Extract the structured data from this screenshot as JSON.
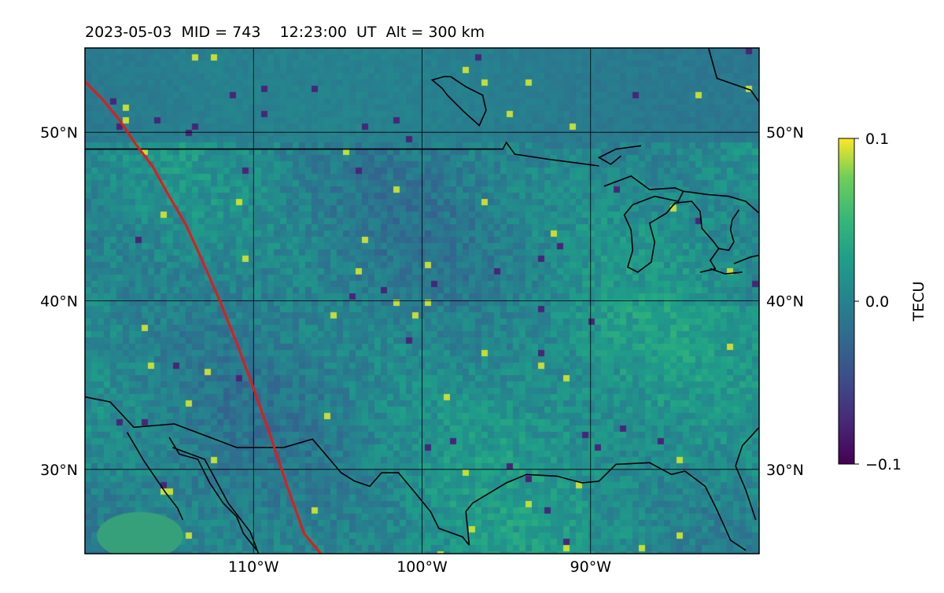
{
  "chart_data": {
    "type": "heatmap",
    "title": {
      "date": "2023-05-03",
      "mid": "MID = 743",
      "time": "12:23:00  UT",
      "alt": "Alt = 300 km"
    },
    "x_axis": {
      "ticks": [
        -110,
        -100,
        -90
      ],
      "tick_labels": [
        "110°W",
        "100°W",
        "90°W"
      ],
      "range_deg": [
        -120,
        -80
      ]
    },
    "y_axis": {
      "ticks": [
        30,
        40,
        50
      ],
      "tick_labels": [
        "30°N",
        "40°N",
        "50°N"
      ],
      "range_deg": [
        25,
        55
      ]
    },
    "grid": true,
    "colorbar": {
      "label": "TECU",
      "colormap": "viridis",
      "range": [
        -0.1,
        0.1
      ],
      "tick_labels": [
        "0.1",
        "0.0",
        "−0.1"
      ],
      "ticks": [
        0.1,
        0.0,
        -0.1
      ]
    },
    "terminator_line": {
      "color": "#e31a1c",
      "points_lon_lat": [
        [
          -120,
          53
        ],
        [
          -119,
          52
        ],
        [
          -118,
          50.8
        ],
        [
          -117,
          49.3
        ],
        [
          -116,
          48
        ],
        [
          -115,
          46.2
        ],
        [
          -114,
          44.5
        ],
        [
          -113,
          42.3
        ],
        [
          -112,
          40
        ],
        [
          -111,
          37.5
        ],
        [
          -110,
          34.8
        ],
        [
          -109,
          32
        ],
        [
          -108,
          29
        ],
        [
          -107,
          26.2
        ],
        [
          -106,
          25
        ]
      ]
    },
    "coast_color": "#000000",
    "coastlines_lon_lat": [
      [
        [
          -120,
          49
        ],
        [
          -95.2,
          49
        ],
        [
          -95,
          49.4
        ],
        [
          -94.5,
          48.7
        ],
        [
          -92.5,
          48.4
        ],
        [
          -91,
          48.2
        ],
        [
          -89.5,
          48
        ]
      ],
      [
        [
          -120,
          34.3
        ],
        [
          -118.5,
          34
        ],
        [
          -117.1,
          32.5
        ],
        [
          -114.7,
          32.7
        ],
        [
          -111,
          31.3
        ],
        [
          -108.2,
          31.3
        ],
        [
          -106.5,
          31.8
        ],
        [
          -104.8,
          29.8
        ],
        [
          -104,
          29.3
        ],
        [
          -103.1,
          29
        ],
        [
          -102.4,
          29.8
        ],
        [
          -101.4,
          29.8
        ],
        [
          -100.4,
          28.6
        ],
        [
          -99.5,
          27.5
        ],
        [
          -99,
          26.5
        ],
        [
          -97.6,
          26
        ],
        [
          -97.2,
          25.5
        ]
      ],
      [
        [
          -97.2,
          25.5
        ],
        [
          -97.4,
          27.5
        ],
        [
          -97,
          28
        ],
        [
          -95,
          29.2
        ],
        [
          -93.8,
          29.7
        ],
        [
          -92,
          29.6
        ],
        [
          -90.5,
          29.2
        ],
        [
          -89.5,
          29.3
        ],
        [
          -88.5,
          30.3
        ],
        [
          -86.5,
          30.4
        ],
        [
          -85.2,
          29.7
        ],
        [
          -84.4,
          29.9
        ],
        [
          -83.2,
          29
        ],
        [
          -82.6,
          27.8
        ],
        [
          -82,
          26.5
        ],
        [
          -81.7,
          25.8
        ],
        [
          -80.8,
          25.2
        ]
      ],
      [
        [
          -80,
          32.5
        ],
        [
          -81,
          31.4
        ],
        [
          -81.4,
          30.2
        ],
        [
          -80.8,
          28.8
        ],
        [
          -80.2,
          27
        ]
      ],
      [
        [
          -117.5,
          32.2
        ],
        [
          -116.5,
          30.5
        ],
        [
          -115.2,
          28.6
        ],
        [
          -114.5,
          27.7
        ],
        [
          -114.2,
          27
        ]
      ],
      [
        [
          -115,
          31.9
        ],
        [
          -114.4,
          30.9
        ],
        [
          -113.3,
          30.6
        ],
        [
          -112.6,
          29.2
        ],
        [
          -111.8,
          28
        ],
        [
          -111,
          27.2
        ],
        [
          -110.6,
          26.2
        ],
        [
          -109.8,
          25.2
        ]
      ],
      [
        [
          -109.7,
          25
        ],
        [
          -110.2,
          26.3
        ],
        [
          -111.5,
          28
        ],
        [
          -112.2,
          29.3
        ],
        [
          -112.9,
          30.6
        ],
        [
          -114.8,
          31.3
        ]
      ],
      [
        [
          -89.2,
          46.8
        ],
        [
          -87.6,
          47.4
        ],
        [
          -86.5,
          46.6
        ],
        [
          -85,
          46.7
        ],
        [
          -84.5,
          46.5
        ],
        [
          -84.8,
          45.9
        ],
        [
          -86.2,
          46.2
        ],
        [
          -87.5,
          45.7
        ],
        [
          -88,
          45.1
        ],
        [
          -87.6,
          44.2
        ],
        [
          -87.5,
          43
        ],
        [
          -87.8,
          42
        ],
        [
          -87.2,
          41.7
        ],
        [
          -86.4,
          42.3
        ],
        [
          -86.2,
          43.5
        ],
        [
          -86.5,
          44.6
        ],
        [
          -85.5,
          45.2
        ],
        [
          -85,
          45.8
        ],
        [
          -84,
          45.9
        ],
        [
          -83.5,
          45.3
        ],
        [
          -83.4,
          44.3
        ],
        [
          -82.7,
          43.5
        ],
        [
          -82.4,
          43.1
        ]
      ],
      [
        [
          -81.5,
          42.2
        ],
        [
          -80.5,
          42.6
        ],
        [
          -80,
          42.7
        ]
      ],
      [
        [
          -81.2,
          45.4
        ],
        [
          -81.6,
          44.8
        ],
        [
          -81.7,
          44.2
        ],
        [
          -81.5,
          43.5
        ],
        [
          -81.8,
          43
        ],
        [
          -82.4,
          43.1
        ],
        [
          -82.9,
          42.4
        ],
        [
          -82.6,
          41.9
        ],
        [
          -83.5,
          41.7
        ]
      ],
      [
        [
          -82.9,
          41.9
        ],
        [
          -82,
          41.6
        ],
        [
          -81,
          41.7
        ]
      ],
      [
        [
          -80,
          45.2
        ],
        [
          -80.8,
          45.9
        ],
        [
          -81.8,
          46.2
        ],
        [
          -83,
          46.3
        ],
        [
          -84.5,
          46.5
        ]
      ],
      [
        [
          -80,
          51.8
        ],
        [
          -80.5,
          52.5
        ],
        [
          -82.5,
          53.2
        ],
        [
          -83,
          55
        ]
      ],
      [
        [
          -98.3,
          53.3
        ],
        [
          -97.4,
          52.7
        ],
        [
          -96.4,
          52.2
        ],
        [
          -96.2,
          51.3
        ],
        [
          -96.6,
          50.4
        ],
        [
          -97.5,
          51.2
        ],
        [
          -98.5,
          52.2
        ],
        [
          -98.8,
          52.6
        ],
        [
          -99.4,
          53.1
        ],
        [
          -98.7,
          53.3
        ],
        [
          -98.3,
          53.3
        ]
      ],
      [
        [
          -87,
          49.2
        ],
        [
          -88.5,
          49
        ],
        [
          -89.5,
          48.5
        ],
        [
          -88.8,
          48.1
        ],
        [
          -88.2,
          48.6
        ]
      ]
    ]
  }
}
